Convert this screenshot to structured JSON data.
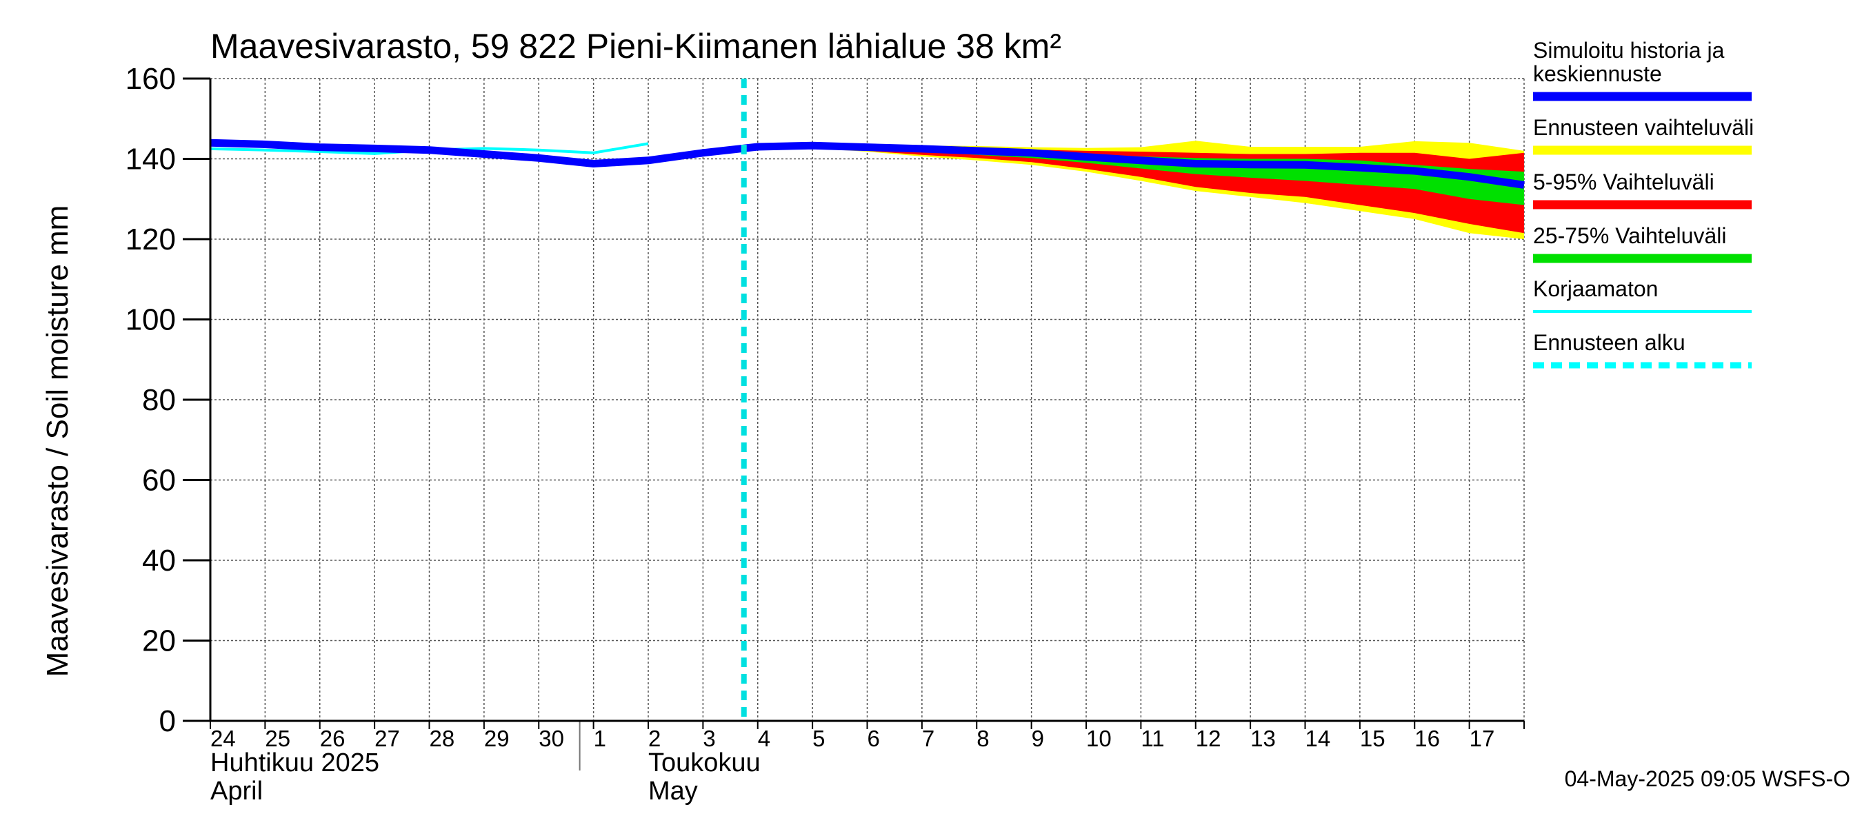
{
  "chart_data": {
    "type": "area",
    "title": "Maavesivarasto, 59 822 Pieni-Kiimanen lähialue 38 km²",
    "ylabel": "Maavesivarasto / Soil moisture   mm",
    "ylim": [
      0,
      160
    ],
    "yticks": [
      "0",
      "20",
      "40",
      "60",
      "80",
      "100",
      "120",
      "140",
      "160"
    ],
    "xlim": [
      "2025-04-24",
      "2025-05-18"
    ],
    "grid": true,
    "day_ticks": [
      {
        "date": "2025-04-24",
        "label": "24"
      },
      {
        "date": "2025-04-25",
        "label": "25"
      },
      {
        "date": "2025-04-26",
        "label": "26"
      },
      {
        "date": "2025-04-27",
        "label": "27"
      },
      {
        "date": "2025-04-28",
        "label": "28"
      },
      {
        "date": "2025-04-29",
        "label": "29"
      },
      {
        "date": "2025-04-30",
        "label": "30"
      },
      {
        "date": "2025-05-01",
        "label": "1"
      },
      {
        "date": "2025-05-02",
        "label": "2"
      },
      {
        "date": "2025-05-03",
        "label": "3"
      },
      {
        "date": "2025-05-04",
        "label": "4"
      },
      {
        "date": "2025-05-05",
        "label": "5"
      },
      {
        "date": "2025-05-06",
        "label": "6"
      },
      {
        "date": "2025-05-07",
        "label": "7"
      },
      {
        "date": "2025-05-08",
        "label": "8"
      },
      {
        "date": "2025-05-09",
        "label": "9"
      },
      {
        "date": "2025-05-10",
        "label": "10"
      },
      {
        "date": "2025-05-11",
        "label": "11"
      },
      {
        "date": "2025-05-12",
        "label": "12"
      },
      {
        "date": "2025-05-13",
        "label": "13"
      },
      {
        "date": "2025-05-14",
        "label": "14"
      },
      {
        "date": "2025-05-15",
        "label": "15"
      },
      {
        "date": "2025-05-16",
        "label": "16"
      },
      {
        "date": "2025-05-17",
        "label": "17"
      }
    ],
    "month_labels": [
      {
        "date": "2025-04-24",
        "line1": "Huhtikuu  2025",
        "line2": "April"
      },
      {
        "date": "2025-05-02",
        "line1": "Toukokuu",
        "line2": "May"
      }
    ],
    "month_separator_date": "2025-05-01",
    "forecast_start": "2025-05-04",
    "series": [
      {
        "name": "Ennusteen vaihteluväli",
        "kind": "band",
        "color": "#ffff00",
        "x": [
          "2025-05-04",
          "2025-05-05",
          "2025-05-06",
          "2025-05-07",
          "2025-05-08",
          "2025-05-09",
          "2025-05-10",
          "2025-05-11",
          "2025-05-12",
          "2025-05-13",
          "2025-05-14",
          "2025-05-15",
          "2025-05-16",
          "2025-05-17",
          "2025-05-18"
        ],
        "upper": [
          143.3,
          143.8,
          143.5,
          143.3,
          143.2,
          142.9,
          142.7,
          142.9,
          144.5,
          143.0,
          143.0,
          143.0,
          144.4,
          144.0,
          142.0
        ],
        "lower": [
          143.0,
          142.6,
          141.8,
          140.6,
          139.6,
          138.5,
          136.8,
          134.5,
          132.0,
          130.5,
          129.0,
          127.0,
          125.0,
          121.5,
          120.0
        ]
      },
      {
        "name": "5-95% Vaihteluväli",
        "kind": "band",
        "color": "#ff0000",
        "x": [
          "2025-05-04",
          "2025-05-05",
          "2025-05-06",
          "2025-05-07",
          "2025-05-08",
          "2025-05-09",
          "2025-05-10",
          "2025-05-11",
          "2025-05-12",
          "2025-05-13",
          "2025-05-14",
          "2025-05-15",
          "2025-05-16",
          "2025-05-17",
          "2025-05-18"
        ],
        "upper": [
          143.3,
          143.6,
          143.3,
          143.0,
          142.7,
          142.3,
          142.0,
          141.8,
          141.5,
          141.2,
          141.2,
          141.5,
          141.5,
          140.0,
          141.5
        ],
        "lower": [
          143.0,
          142.7,
          142.0,
          141.0,
          140.2,
          139.2,
          137.5,
          135.5,
          133.0,
          131.5,
          130.5,
          128.5,
          126.5,
          123.8,
          121.5
        ]
      },
      {
        "name": "25-75% Vaihteluväli",
        "kind": "band",
        "color": "#00e000",
        "x": [
          "2025-05-04",
          "2025-05-05",
          "2025-05-06",
          "2025-05-07",
          "2025-05-08",
          "2025-05-09",
          "2025-05-10",
          "2025-05-11",
          "2025-05-12",
          "2025-05-13",
          "2025-05-14",
          "2025-05-15",
          "2025-05-16",
          "2025-05-17",
          "2025-05-18"
        ],
        "upper": [
          143.2,
          143.4,
          143.0,
          142.6,
          142.2,
          141.8,
          141.2,
          140.6,
          140.2,
          140.0,
          140.0,
          139.6,
          138.5,
          137.5,
          136.8
        ],
        "lower": [
          143.1,
          143.0,
          142.5,
          141.8,
          141.0,
          140.2,
          139.0,
          137.6,
          136.2,
          135.3,
          134.5,
          133.5,
          132.5,
          130.0,
          128.5
        ]
      },
      {
        "name": "Simuloitu historia ja keskiennuste",
        "kind": "line",
        "color": "#0000ff",
        "x": [
          "2025-04-24",
          "2025-04-25",
          "2025-04-26",
          "2025-04-27",
          "2025-04-28",
          "2025-04-29",
          "2025-04-30",
          "2025-05-01",
          "2025-05-02",
          "2025-05-03",
          "2025-05-04",
          "2025-05-05",
          "2025-05-06",
          "2025-05-07",
          "2025-05-08",
          "2025-05-09",
          "2025-05-10",
          "2025-05-11",
          "2025-05-12",
          "2025-05-13",
          "2025-05-14",
          "2025-05-15",
          "2025-05-16",
          "2025-05-17",
          "2025-05-18"
        ],
        "y": [
          144.0,
          143.6,
          142.9,
          142.6,
          142.2,
          141.2,
          140.2,
          138.8,
          139.6,
          141.5,
          143.0,
          143.3,
          142.9,
          142.5,
          142.0,
          141.5,
          140.5,
          139.6,
          138.8,
          138.6,
          138.5,
          137.8,
          137.0,
          135.5,
          133.5
        ]
      },
      {
        "name": "Korjaamaton",
        "kind": "line",
        "color": "#00ffff",
        "x": [
          "2025-04-24",
          "2025-04-25",
          "2025-04-26",
          "2025-04-27",
          "2025-04-28",
          "2025-04-29",
          "2025-04-30",
          "2025-05-01",
          "2025-05-02"
        ],
        "y": [
          142.5,
          142.2,
          141.8,
          141.3,
          142.2,
          142.6,
          142.2,
          141.5,
          143.8
        ]
      }
    ],
    "legend_position": "right",
    "legend": [
      {
        "label": "Simuloitu historia ja\nkeskiennuste",
        "color": "#0000ff",
        "style": "solid"
      },
      {
        "label": "Ennusteen vaihteluväli",
        "color": "#ffff00",
        "style": "solid"
      },
      {
        "label": "5-95% Vaihteluväli",
        "color": "#ff0000",
        "style": "solid"
      },
      {
        "label": "25-75% Vaihteluväli",
        "color": "#00e000",
        "style": "solid"
      },
      {
        "label": "Korjaamaton",
        "color": "#00ffff",
        "style": "thin"
      },
      {
        "label": "Ennusteen alku",
        "color": "#00ffff",
        "style": "dashed"
      }
    ],
    "timestamp": "04-May-2025 09:05 WSFS-O"
  }
}
